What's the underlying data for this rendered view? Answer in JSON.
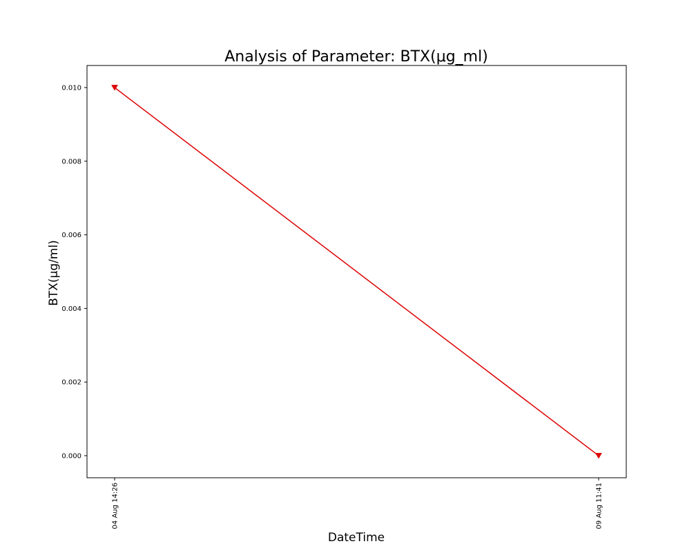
{
  "chart_data": {
    "type": "line",
    "title": "Analysis of Parameter: BTX(μg_ml)",
    "xlabel": "DateTime",
    "ylabel": "BTX(μg/ml)",
    "x": [
      "04 Aug 14:26",
      "09 Aug 11:41"
    ],
    "series": [
      {
        "values": [
          0.01,
          0.0
        ],
        "color": "#dd0000",
        "marker": "triangle-down"
      }
    ],
    "ylim": [
      -0.0006,
      0.0106
    ],
    "yticks": [
      0.0,
      0.002,
      0.004,
      0.006,
      0.008,
      0.01
    ],
    "ytick_labels": [
      "0.000",
      "0.002",
      "0.004",
      "0.006",
      "0.008",
      "0.010"
    ],
    "grid": false,
    "legend": false
  }
}
